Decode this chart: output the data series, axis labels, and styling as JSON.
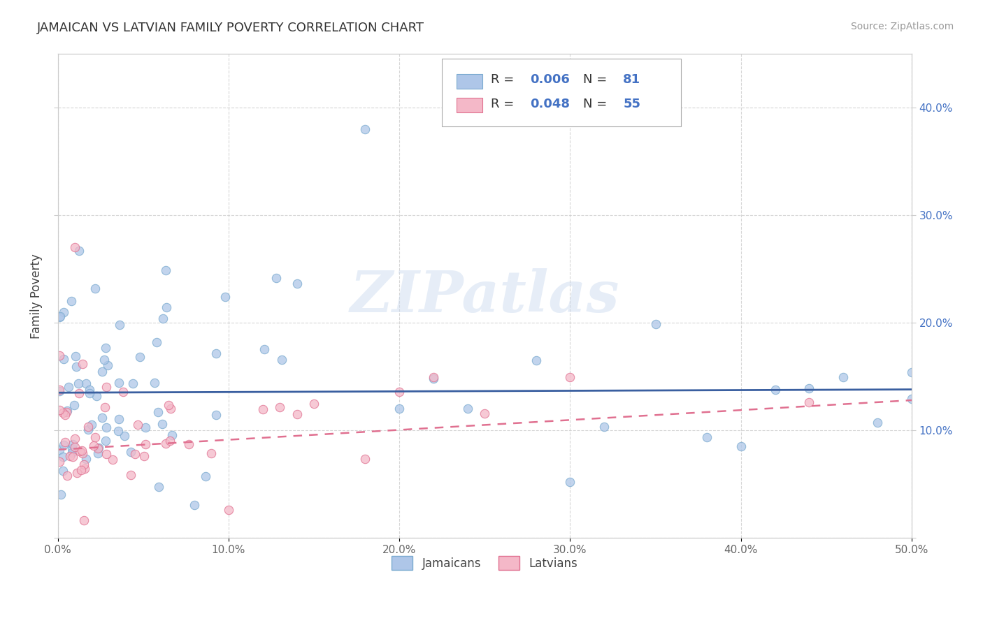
{
  "title": "JAMAICAN VS LATVIAN FAMILY POVERTY CORRELATION CHART",
  "source": "Source: ZipAtlas.com",
  "ylabel": "Family Poverty",
  "xlim": [
    0.0,
    0.5
  ],
  "ylim": [
    0.0,
    0.45
  ],
  "xticks": [
    0.0,
    0.1,
    0.2,
    0.3,
    0.4,
    0.5
  ],
  "xticklabels": [
    "0.0%",
    "10.0%",
    "20.0%",
    "30.0%",
    "40.0%",
    "50.0%"
  ],
  "yticks": [
    0.0,
    0.1,
    0.2,
    0.3,
    0.4
  ],
  "left_yticklabels": [
    "",
    "",
    "",
    "",
    ""
  ],
  "right_yticklabels": [
    "",
    "10.0%",
    "20.0%",
    "30.0%",
    "40.0%"
  ],
  "jamaican_color": "#aec6e8",
  "latvian_color": "#f4b8c8",
  "jamaican_edge_color": "#7aaacf",
  "latvian_edge_color": "#e07090",
  "jamaican_line_color": "#3a5fa0",
  "latvian_line_color": "#e07090",
  "jamaican_R": 0.006,
  "jamaican_N": 81,
  "latvian_R": 0.048,
  "latvian_N": 55,
  "grid_color": "#cccccc",
  "background_color": "#ffffff",
  "watermark": "ZIPatlas",
  "legend_label_jamaican": "Jamaicans",
  "legend_label_latvian": "Latvians",
  "jamaican_trend_y0": 0.135,
  "jamaican_trend_y1": 0.138,
  "latvian_trend_y0": 0.082,
  "latvian_trend_y1": 0.128,
  "title_fontsize": 13,
  "source_fontsize": 10,
  "tick_fontsize": 11,
  "right_tick_color": "#4472c4"
}
